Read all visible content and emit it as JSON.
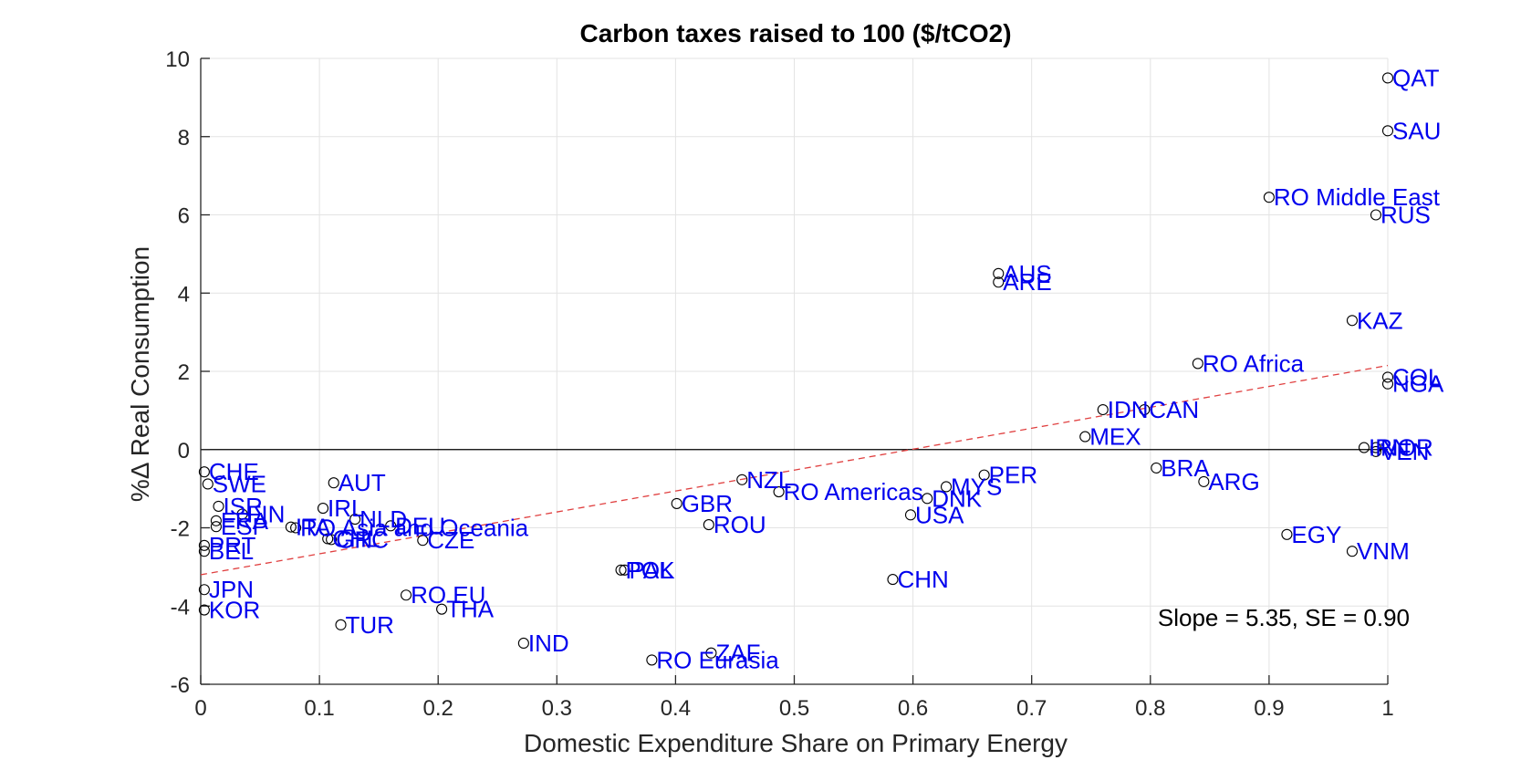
{
  "chart_data": {
    "type": "scatter",
    "title": "Carbon taxes raised to 100 ($/tCO2)",
    "xlabel": "Domestic Expenditure Share on Primary Energy",
    "ylabel": "%Δ Real Consumption",
    "xlim": [
      0,
      1
    ],
    "ylim": [
      -6,
      10
    ],
    "xticks": [
      0,
      0.1,
      0.2,
      0.3,
      0.4,
      0.5,
      0.6,
      0.7,
      0.8,
      0.9,
      1
    ],
    "xtick_labels": [
      "0",
      "0.1",
      "0.2",
      "0.3",
      "0.4",
      "0.5",
      "0.6",
      "0.7",
      "0.8",
      "0.9",
      "1"
    ],
    "yticks": [
      -6,
      -4,
      -2,
      0,
      2,
      4,
      6,
      8,
      10
    ],
    "ytick_labels": [
      "-6",
      "-4",
      "-2",
      "0",
      "2",
      "4",
      "6",
      "8",
      "10"
    ],
    "grid": true,
    "zero_line": true,
    "marker_color": "#000000",
    "label_color": "#0000ee",
    "fit_line": {
      "color": "#e04040",
      "style": "dashed",
      "x": [
        0,
        1
      ],
      "y": [
        -3.2,
        2.15
      ]
    },
    "annotation": "Slope = 5.35, SE = 0.90",
    "points": [
      {
        "label": "QAT",
        "x": 1.0,
        "y": 9.5
      },
      {
        "label": "SAU",
        "x": 1.0,
        "y": 8.15
      },
      {
        "label": "RO Middle East",
        "x": 0.9,
        "y": 6.45
      },
      {
        "label": "RUS",
        "x": 0.99,
        "y": 6.0
      },
      {
        "label": "AUS",
        "x": 0.672,
        "y": 4.5
      },
      {
        "label": "ARE",
        "x": 0.672,
        "y": 4.28
      },
      {
        "label": "KAZ",
        "x": 0.97,
        "y": 3.3
      },
      {
        "label": "RO Africa",
        "x": 0.84,
        "y": 2.2
      },
      {
        "label": "COL",
        "x": 1.0,
        "y": 1.85
      },
      {
        "label": "NGA",
        "x": 1.0,
        "y": 1.68
      },
      {
        "label": "IDN",
        "x": 0.76,
        "y": 1.02
      },
      {
        "label": "CAN",
        "x": 0.795,
        "y": 1.02
      },
      {
        "label": "MEX",
        "x": 0.745,
        "y": 0.33
      },
      {
        "label": "IRN",
        "x": 0.98,
        "y": 0.05
      },
      {
        "label": "NOR",
        "x": 0.99,
        "y": 0.05
      },
      {
        "label": "VEN",
        "x": 0.99,
        "y": -0.05
      },
      {
        "label": "BRA",
        "x": 0.805,
        "y": -0.47
      },
      {
        "label": "PER",
        "x": 0.66,
        "y": -0.65
      },
      {
        "label": "ARG",
        "x": 0.845,
        "y": -0.82
      },
      {
        "label": "MYS",
        "x": 0.628,
        "y": -0.95
      },
      {
        "label": "NZL",
        "x": 0.456,
        "y": -0.77
      },
      {
        "label": "RO Americas",
        "x": 0.487,
        "y": -1.08
      },
      {
        "label": "DNK",
        "x": 0.612,
        "y": -1.25
      },
      {
        "label": "GBR",
        "x": 0.401,
        "y": -1.38
      },
      {
        "label": "USA",
        "x": 0.598,
        "y": -1.67
      },
      {
        "label": "ROU",
        "x": 0.428,
        "y": -1.92
      },
      {
        "label": "EGY",
        "x": 0.915,
        "y": -2.17
      },
      {
        "label": "VNM",
        "x": 0.97,
        "y": -2.6
      },
      {
        "label": "CHN",
        "x": 0.583,
        "y": -3.32
      },
      {
        "label": "POL",
        "x": 0.354,
        "y": -3.08
      },
      {
        "label": "PAK",
        "x": 0.357,
        "y": -3.08
      },
      {
        "label": "CHE",
        "x": 0.003,
        "y": -0.57
      },
      {
        "label": "SWE",
        "x": 0.006,
        "y": -0.88
      },
      {
        "label": "ISR",
        "x": 0.015,
        "y": -1.45
      },
      {
        "label": "FRA",
        "x": 0.013,
        "y": -1.82
      },
      {
        "label": "FIN",
        "x": 0.035,
        "y": -1.65
      },
      {
        "label": "ESP",
        "x": 0.013,
        "y": -1.97
      },
      {
        "label": "PRT",
        "x": 0.003,
        "y": -2.45
      },
      {
        "label": "BEL",
        "x": 0.003,
        "y": -2.6
      },
      {
        "label": "AUT",
        "x": 0.112,
        "y": -0.85
      },
      {
        "label": "IRL",
        "x": 0.103,
        "y": -1.5
      },
      {
        "label": "NLD",
        "x": 0.13,
        "y": -1.78
      },
      {
        "label": "RO Asia and Oceania",
        "x": 0.08,
        "y": -2.0
      },
      {
        "label": "ITA",
        "x": 0.076,
        "y": -1.98
      },
      {
        "label": "DEU",
        "x": 0.16,
        "y": -1.95
      },
      {
        "label": "CHL",
        "x": 0.107,
        "y": -2.28
      },
      {
        "label": "GRC",
        "x": 0.11,
        "y": -2.3
      },
      {
        "label": "CZE",
        "x": 0.187,
        "y": -2.32
      },
      {
        "label": "JPN",
        "x": 0.003,
        "y": -3.58
      },
      {
        "label": "KOR",
        "x": 0.003,
        "y": -4.1
      },
      {
        "label": "RO EU",
        "x": 0.173,
        "y": -3.72
      },
      {
        "label": "THA",
        "x": 0.203,
        "y": -4.08
      },
      {
        "label": "TUR",
        "x": 0.118,
        "y": -4.48
      },
      {
        "label": "IND",
        "x": 0.272,
        "y": -4.95
      },
      {
        "label": "ZAF",
        "x": 0.43,
        "y": -5.2
      },
      {
        "label": "RO Eurasia",
        "x": 0.38,
        "y": -5.38
      }
    ]
  }
}
